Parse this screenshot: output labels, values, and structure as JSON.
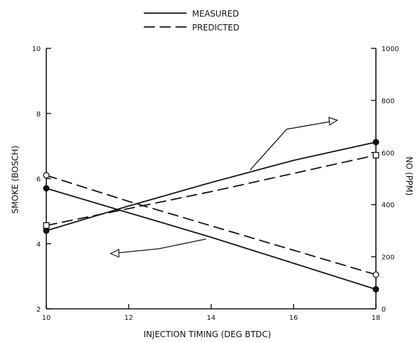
{
  "chart_data": {
    "type": "line",
    "legend": {
      "placement": "top-center",
      "entries": [
        {
          "label": "MEASURED",
          "style": "solid"
        },
        {
          "label": "PREDICTED",
          "style": "dashed"
        }
      ]
    },
    "xlabel": "INJECTION TIMING (DEG BTDC)",
    "ylabel_left": "SMOKE (BOSCH)",
    "ylabel_right": "NO (PPM)",
    "xlim": [
      10,
      18
    ],
    "ylim_left": [
      2,
      10
    ],
    "ylim_right": [
      0,
      1000
    ],
    "x_ticks": [
      "10",
      "12",
      "14",
      "16",
      "18"
    ],
    "y_left_ticks": [
      "2",
      "4",
      "6",
      "8",
      "10"
    ],
    "y_right_ticks": [
      "0",
      "200",
      "400",
      "600",
      "800",
      "1000"
    ],
    "grid": false,
    "series": [
      {
        "axis": "left",
        "style": "solid",
        "marker": "filled-circle",
        "x": [
          10,
          12,
          14,
          16,
          18
        ],
        "values": [
          5.7,
          4.95,
          4.2,
          3.4,
          2.6
        ]
      },
      {
        "axis": "left",
        "style": "dashed",
        "marker": "open-circle",
        "x": [
          10,
          12,
          14,
          16,
          18
        ],
        "values": [
          6.1,
          5.3,
          4.55,
          3.8,
          3.05
        ]
      },
      {
        "axis": "right",
        "style": "solid",
        "marker": "filled-circle",
        "x": [
          10,
          12,
          14,
          16,
          18
        ],
        "values": [
          300,
          395,
          485,
          570,
          640
        ]
      },
      {
        "axis": "right",
        "style": "dashed",
        "marker": "open-square",
        "x": [
          10,
          12,
          14,
          16,
          18
        ],
        "values": [
          320,
          385,
          450,
          520,
          590
        ]
      }
    ]
  }
}
